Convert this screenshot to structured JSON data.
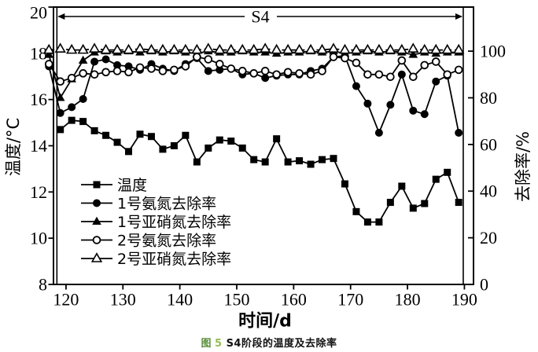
{
  "figure": {
    "caption": {
      "fig_marker": "图",
      "fig_number": "5",
      "text": "S4阶段的温度及去除率",
      "marker_color": "#5a8f3c",
      "number_color": "#96bd54"
    }
  },
  "chart_data": {
    "type": "line",
    "title": "图 5 S4阶段的温度及去除率",
    "xlabel": "时间/d",
    "ylabel_left": "温度/°C",
    "ylabel_right": "去除率/%",
    "xlim": [
      117.8,
      191.6
    ],
    "ylim_left": [
      8,
      20
    ],
    "ylim_right": [
      0,
      118.9
    ],
    "x_ticks": [
      120,
      130,
      140,
      150,
      160,
      170,
      180,
      190
    ],
    "y_left_ticks": [
      20,
      18,
      16,
      14,
      12,
      10,
      8
    ],
    "y_right_ticks": [
      100,
      80,
      60,
      40,
      20,
      0
    ],
    "grid": false,
    "line_color": "#000000",
    "legend_position": "inside-lower-left",
    "annotation": {
      "label": "S4",
      "from_day": 118.4,
      "to_day": 189.8
    },
    "series": [
      {
        "id": "temperature",
        "name": "温度",
        "axis": "left",
        "marker": "square-filled",
        "line_style": "solid",
        "x": [
          119,
          121,
          123,
          125,
          127,
          129,
          131,
          133,
          135,
          137,
          139,
          141,
          143,
          145,
          147,
          149,
          151,
          153,
          155,
          157,
          159,
          161,
          163,
          165,
          167,
          169,
          171,
          173,
          175,
          177,
          179,
          181,
          183,
          185,
          187,
          189
        ],
        "y": [
          14.7,
          15.1,
          15.05,
          14.65,
          14.45,
          14.15,
          13.75,
          14.5,
          14.4,
          13.85,
          14.0,
          14.45,
          13.3,
          13.9,
          14.25,
          14.2,
          13.9,
          13.4,
          13.3,
          14.3,
          13.3,
          13.35,
          13.2,
          13.4,
          13.45,
          12.35,
          11.15,
          10.7,
          10.7,
          11.55,
          12.25,
          11.3,
          11.5,
          12.55,
          12.85,
          11.55
        ]
      },
      {
        "id": "no1-ammonia-removal",
        "name": "1号氨氮去除率",
        "axis": "right",
        "marker": "circle-filled",
        "line_style": "solid",
        "x": [
          117,
          119,
          121,
          123,
          125,
          127,
          129,
          131,
          133,
          135,
          137,
          139,
          141,
          143,
          145,
          147,
          149,
          151,
          153,
          155,
          157,
          159,
          161,
          163,
          165,
          167,
          169,
          171,
          173,
          175,
          177,
          179,
          181,
          183,
          185,
          187,
          189
        ],
        "y": [
          93.5,
          73.5,
          76,
          79.5,
          95.5,
          96.5,
          94,
          93.5,
          92,
          94.5,
          92.5,
          91.5,
          94.5,
          97,
          91.5,
          92,
          92.5,
          90,
          90.5,
          88.5,
          89.5,
          90,
          90,
          91.5,
          92.5,
          97.5,
          98,
          85,
          77.5,
          65,
          77,
          90,
          74.5,
          73,
          87,
          89.5,
          65
        ]
      },
      {
        "id": "no1-nitrite-removal",
        "name": "1号亚硝氮去除率",
        "axis": "right",
        "marker": "triangle-filled",
        "line_style": "solid",
        "x": [
          117,
          119,
          121,
          123,
          125,
          127,
          129,
          131,
          133,
          135,
          137,
          139,
          141,
          143,
          145,
          147,
          149,
          151,
          153,
          155,
          157,
          159,
          161,
          163,
          165,
          167,
          169,
          171,
          173,
          175,
          177,
          179,
          181,
          183,
          185,
          187,
          189
        ],
        "y": [
          98.5,
          80,
          88,
          96,
          99.5,
          100,
          99.5,
          100,
          99.5,
          100,
          99.5,
          100,
          99.5,
          99,
          100,
          99.5,
          99.5,
          100,
          99.5,
          99.5,
          99,
          99.5,
          99.5,
          100,
          99.5,
          100,
          99,
          99.5,
          100,
          99.5,
          100,
          99.5,
          98.5,
          99.5,
          99,
          99.5,
          99.5
        ]
      },
      {
        "id": "no2-ammonia-removal",
        "name": "2号氨氮去除率",
        "axis": "right",
        "marker": "circle-open",
        "line_style": "solid",
        "x": [
          117,
          119,
          121,
          123,
          125,
          127,
          129,
          131,
          133,
          135,
          137,
          139,
          141,
          143,
          145,
          147,
          149,
          151,
          153,
          155,
          157,
          159,
          161,
          163,
          165,
          167,
          169,
          171,
          173,
          175,
          177,
          179,
          181,
          183,
          185,
          187,
          189
        ],
        "y": [
          94.5,
          87,
          88.5,
          90.5,
          90,
          91,
          91.5,
          91,
          93,
          92.5,
          91.5,
          92,
          93.5,
          97.5,
          96.5,
          94.5,
          92.5,
          91.5,
          90.5,
          91.5,
          90,
          91,
          90.5,
          90,
          91.5,
          97.5,
          97,
          95,
          90,
          90,
          89,
          96,
          89,
          94,
          95.5,
          90,
          92
        ]
      },
      {
        "id": "no2-nitrite-removal",
        "name": "2号亚硝氮去除率",
        "axis": "right",
        "marker": "triangle-open",
        "line_style": "dashed",
        "x": [
          117,
          119,
          121,
          123,
          125,
          127,
          129,
          131,
          133,
          135,
          137,
          139,
          141,
          143,
          145,
          147,
          149,
          151,
          153,
          155,
          157,
          159,
          161,
          163,
          165,
          167,
          169,
          171,
          173,
          175,
          177,
          179,
          181,
          183,
          185,
          187,
          189
        ],
        "y": [
          100.5,
          101,
          100.5,
          100.5,
          101,
          100.5,
          100.5,
          100.5,
          101,
          100.5,
          100.5,
          100.5,
          100.5,
          100.5,
          101,
          100.5,
          100.5,
          100.5,
          100.5,
          101,
          100.5,
          100.5,
          100.5,
          100.5,
          100.5,
          101,
          100.5,
          100.5,
          100.5,
          100.5,
          100.5,
          100.5,
          101,
          100.5,
          100.5,
          100.5,
          100.5
        ]
      }
    ]
  }
}
